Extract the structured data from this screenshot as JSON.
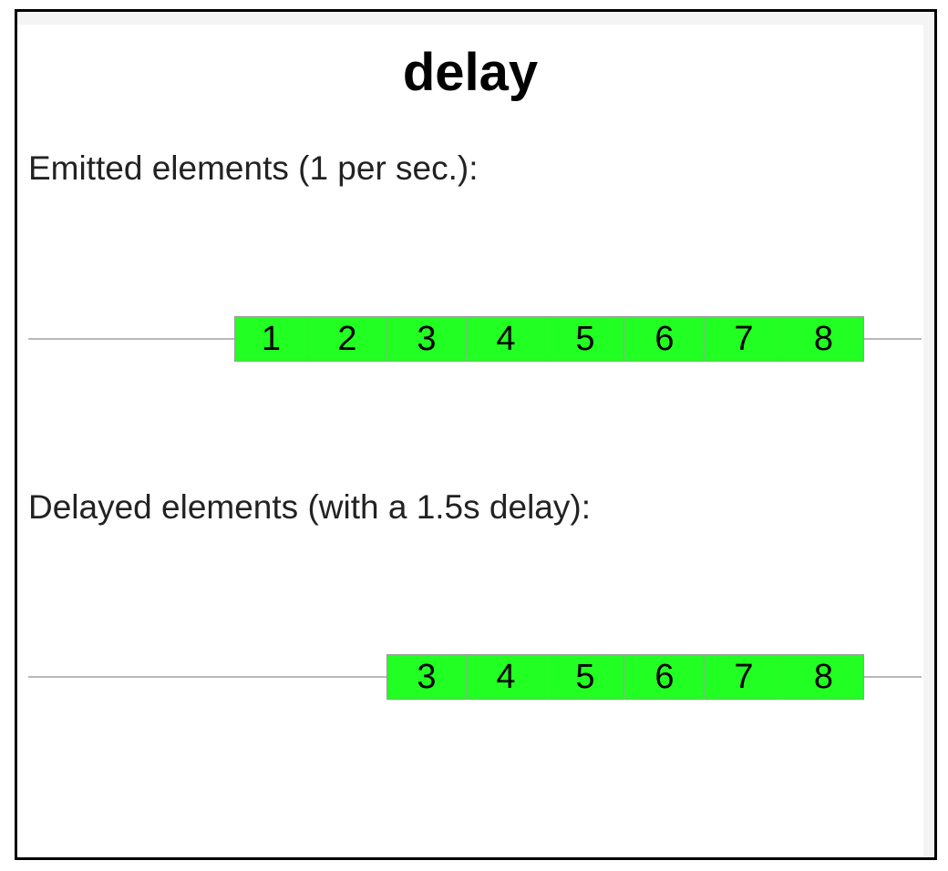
{
  "title": "delay",
  "colors": {
    "marble_fill": "#22ff22",
    "track_line": "#b8b8b8",
    "frame_border": "#000000"
  },
  "emitted": {
    "label": "Emitted elements (1 per sec.):",
    "items": [
      "1",
      "2",
      "3",
      "4",
      "5",
      "6",
      "7",
      "8"
    ]
  },
  "delayed": {
    "label": "Delayed elements (with a 1.5s delay):",
    "items": [
      "3",
      "4",
      "5",
      "6",
      "7",
      "8"
    ]
  }
}
